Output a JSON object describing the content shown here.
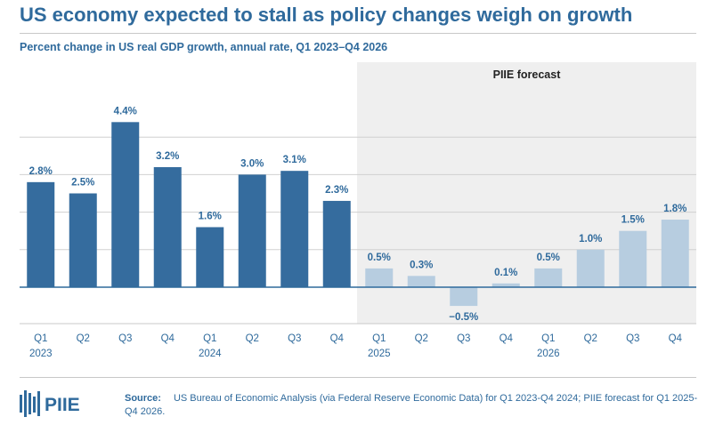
{
  "title": "US economy expected to stall as policy changes weigh on growth",
  "subtitle": "Percent change in US real GDP growth, annual rate, Q1 2023–Q4 2026",
  "forecast_label": "PIIE forecast",
  "colors": {
    "actual": "#356c9e",
    "forecast": "#b7cde0",
    "shade": "#efefef",
    "text": "#2f6a9c",
    "axis": "#2f6a9c"
  },
  "chart_data": {
    "type": "bar",
    "title": "US economy expected to stall as policy changes weigh on growth",
    "ylabel": "Percent change in US real GDP growth, annual rate",
    "xlabel": "",
    "ylim": [
      -1,
      5
    ],
    "categories": [
      "Q1 2023",
      "Q2 2023",
      "Q3 2023",
      "Q4 2023",
      "Q1 2024",
      "Q2 2024",
      "Q3 2024",
      "Q4 2024",
      "Q1 2025",
      "Q2 2025",
      "Q3 2025",
      "Q4 2025",
      "Q1 2026",
      "Q2 2026",
      "Q3 2026",
      "Q4 2026"
    ],
    "quarter_labels": [
      "Q1",
      "Q2",
      "Q3",
      "Q4",
      "Q1",
      "Q2",
      "Q3",
      "Q4",
      "Q1",
      "Q2",
      "Q3",
      "Q4",
      "Q1",
      "Q2",
      "Q3",
      "Q4"
    ],
    "year_labels": [
      "2023",
      "",
      "",
      "",
      "2024",
      "",
      "",
      "",
      "2025",
      "",
      "",
      "",
      "2026",
      "",
      "",
      ""
    ],
    "values": [
      2.8,
      2.5,
      4.4,
      3.2,
      1.6,
      3.0,
      3.1,
      2.3,
      0.5,
      0.3,
      -0.5,
      0.1,
      0.5,
      1.0,
      1.5,
      1.8
    ],
    "value_labels": [
      "2.8%",
      "2.5%",
      "4.4%",
      "3.2%",
      "1.6%",
      "3.0%",
      "3.1%",
      "2.3%",
      "0.5%",
      "0.3%",
      "−0.5%",
      "0.1%",
      "0.5%",
      "1.0%",
      "1.5%",
      "1.8%"
    ],
    "forecast": [
      false,
      false,
      false,
      false,
      false,
      false,
      false,
      false,
      true,
      true,
      true,
      true,
      true,
      true,
      true,
      true
    ],
    "gridlines": [
      1,
      2,
      3,
      4
    ]
  },
  "logo": {
    "text": "PIIE",
    "icon": "piie-bars-icon"
  },
  "source": {
    "label": "Source:",
    "text": "US Bureau of Economic Analysis (via Federal Reserve Economic Data) for Q1 2023-Q4 2024; PIIE forecast for Q1 2025-Q4 2026."
  }
}
